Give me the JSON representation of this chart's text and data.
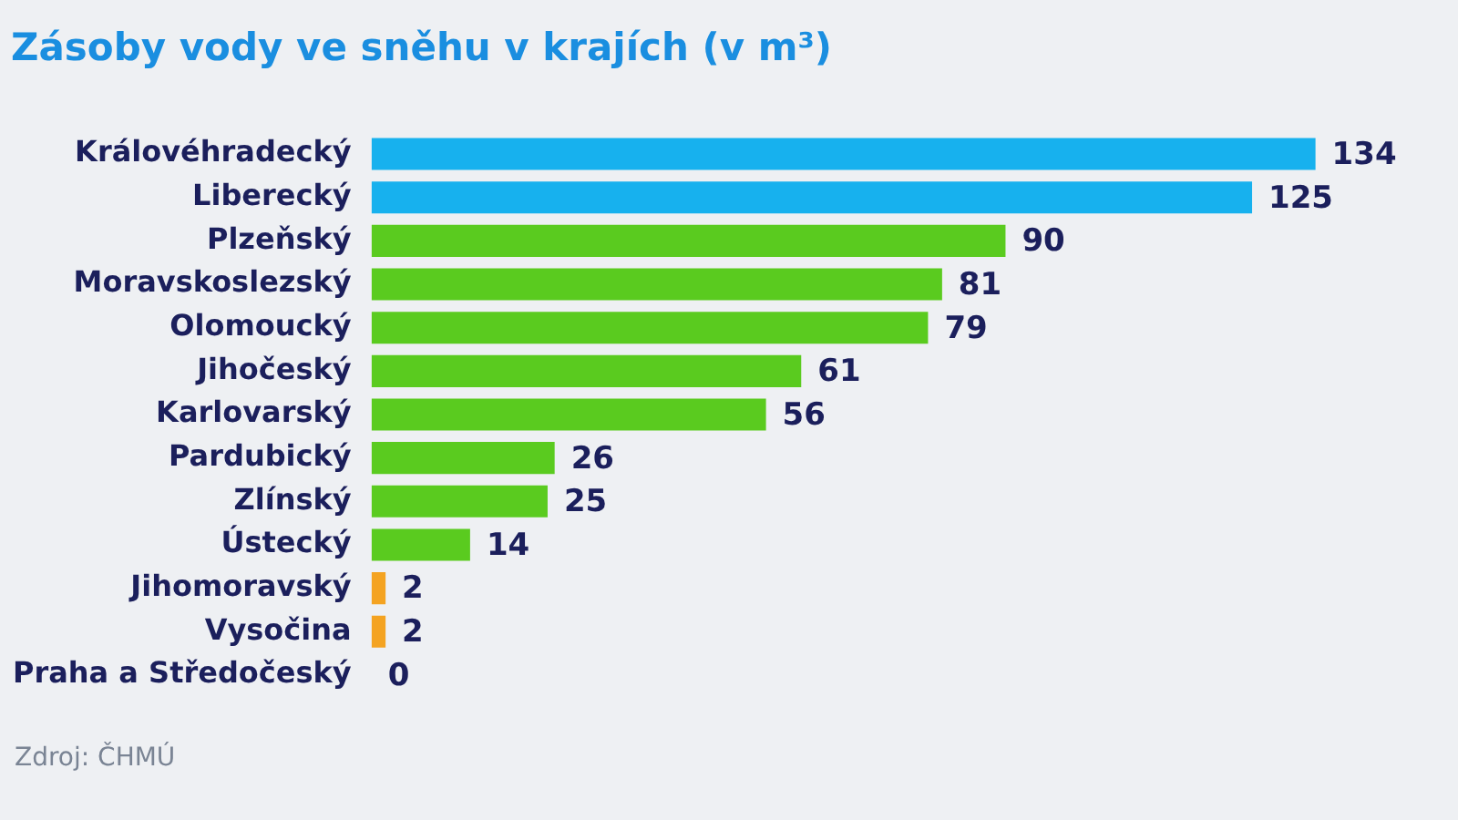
{
  "chart_data": {
    "type": "bar",
    "orientation": "horizontal",
    "title": "Zásoby vody ve sněhu v krajích (v m³)",
    "categories": [
      "Královéhradecký",
      "Liberecký",
      "Plzeňský",
      "Moravskoslezský",
      "Olomoucký",
      "Jihočeský",
      "Karlovarský",
      "Pardubický",
      "Zlínský",
      "Ústecký",
      "Jihomoravský",
      "Vysočina",
      "Praha a Středočeský"
    ],
    "values": [
      134,
      125,
      90,
      81,
      79,
      61,
      56,
      26,
      25,
      14,
      2,
      2,
      0
    ],
    "colors": [
      "#17b1ee",
      "#17b1ee",
      "#5acb1f",
      "#5acb1f",
      "#5acb1f",
      "#5acb1f",
      "#5acb1f",
      "#5acb1f",
      "#5acb1f",
      "#5acb1f",
      "#f4a321",
      "#f4a321",
      "#5acb1f"
    ],
    "data_labels": true,
    "tick_labels": "y",
    "grid": false,
    "legend": false,
    "annotations": [
      "Zdroj: ČHMÚ"
    ]
  }
}
